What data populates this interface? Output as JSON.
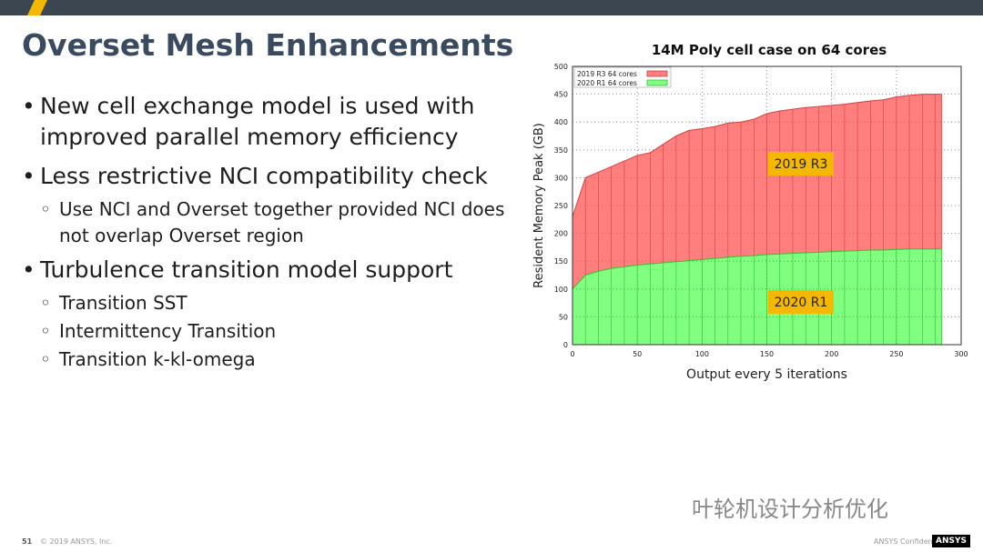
{
  "slide": {
    "title": "Overset Mesh Enhancements",
    "bullets": [
      {
        "text": "New cell exchange model is used with improved parallel memory efficiency",
        "level": 1
      },
      {
        "text": "Less restrictive NCI compatibility check",
        "level": 1
      },
      {
        "text": "Use NCI and Overset together provided NCI does not overlap Overset region",
        "level": 2
      },
      {
        "text": "Turbulence transition model support",
        "level": 1
      },
      {
        "text": "Transition SST",
        "level": 2
      },
      {
        "text": "Intermittency Transition",
        "level": 2
      },
      {
        "text": "Transition k-kl-omega",
        "level": 2
      }
    ],
    "footer": {
      "page": "51",
      "copyright": "© 2019 ANSYS, Inc.",
      "confidential": "ANSYS Confidential",
      "logo": "ANSYS"
    },
    "watermark": "叶轮机设计分析优化"
  },
  "chart_data": {
    "type": "area",
    "title": "14M Poly cell case on 64 cores",
    "x_label": "Output every 5 iterations",
    "y_label": "Resident Memory Peak (GB)",
    "x": [
      0,
      10,
      20,
      30,
      40,
      50,
      60,
      70,
      80,
      90,
      100,
      110,
      120,
      130,
      140,
      150,
      160,
      170,
      180,
      190,
      200,
      210,
      220,
      230,
      240,
      250,
      260,
      270,
      280,
      285
    ],
    "series": [
      {
        "name": "2019 R3 64 cores",
        "color": "#ff7f7f",
        "values": [
          230,
          300,
          310,
          320,
          330,
          340,
          345,
          360,
          375,
          385,
          388,
          392,
          398,
          400,
          405,
          415,
          420,
          423,
          426,
          428,
          430,
          432,
          435,
          438,
          440,
          445,
          448,
          450,
          450,
          450
        ]
      },
      {
        "name": "2020 R1 64 cores",
        "color": "#80ff80",
        "values": [
          100,
          125,
          132,
          137,
          140,
          143,
          145,
          147,
          149,
          151,
          153,
          155,
          157,
          159,
          160,
          162,
          163,
          164,
          165,
          166,
          167,
          168,
          169,
          170,
          170,
          171,
          172,
          172,
          172,
          172
        ]
      }
    ],
    "annotations": [
      "2019 R3",
      "2020 R1"
    ],
    "xlim": [
      0,
      300
    ],
    "xticks": [
      0,
      50,
      100,
      150,
      200,
      250,
      300
    ],
    "ylim": [
      0,
      500
    ],
    "yticks": [
      0,
      50,
      100,
      150,
      200,
      250,
      300,
      350,
      400,
      450,
      500
    ],
    "grid": true,
    "legend": "top-left"
  }
}
